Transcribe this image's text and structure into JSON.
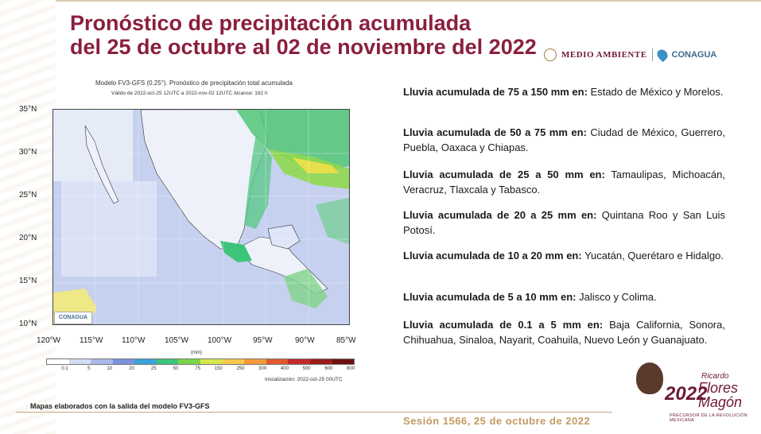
{
  "header": {
    "title_line1": "Pronóstico de precipitación acumulada",
    "title_line2": "del 25 de octubre al 02 de noviembre del 2022",
    "logo_medio_ambiente": "MEDIO AMBIENTE",
    "logo_conagua": "CONAGUA"
  },
  "map": {
    "title": "Modelo FV3-GFS (0.25°). Pronóstico de precipitación total acumulada",
    "subtitle": "Válido de 2022-oct-25 12UTC a 2022-nov-02 12UTC     Alcance: 192 h",
    "lat_labels": [
      "35°N",
      "30°N",
      "25°N",
      "20°N",
      "15°N",
      "10°N"
    ],
    "lon_labels": [
      "120°W",
      "115°W",
      "110°W",
      "105°W",
      "100°W",
      "95°W",
      "90°W",
      "85°W"
    ],
    "badge": "CONAGUA",
    "unit": "(mm)",
    "colorbar_ticks": [
      "0.1",
      "5",
      "10",
      "20",
      "25",
      "50",
      "75",
      "150",
      "250",
      "300",
      "400",
      "500",
      "600",
      "800"
    ],
    "colorbar_colors": [
      "#ffffff",
      "#d4dcf4",
      "#a9b9ea",
      "#7b93dd",
      "#3aa3d8",
      "#3cc47a",
      "#7bd44a",
      "#d8e84a",
      "#f6c94a",
      "#f49a3a",
      "#e2592f",
      "#c32a2a",
      "#9a1b1b",
      "#6e1010"
    ],
    "init_text": "Inicialización: 2022-oct-25 00UTC"
  },
  "rain_list": [
    {
      "label": "Lluvia acumulada de 75 a 150 mm en:",
      "states": " Estado de México y Morelos."
    },
    {
      "label": "Lluvia acumulada de 50 a 75 mm en:",
      "states": " Ciudad de México, Guerrero, Puebla, Oaxaca y Chiapas."
    },
    {
      "label": "Lluvia acumulada de 25 a 50 mm en:",
      "states": " Tamaulipas, Michoacán, Veracruz, Tlaxcala y Tabasco."
    },
    {
      "label": "Lluvia acumulada de 20 a 25 mm en:",
      "states": " Quintana Roo y San Luis Potosí."
    },
    {
      "label": "Lluvia acumulada de 10 a 20 mm en:",
      "states": " Yucatán, Querétaro e Hidalgo."
    },
    {
      "label": "Lluvia acumulada de 5 a 10 mm en:",
      "states": " Jalisco y Colima."
    },
    {
      "label": "Lluvia acumulada de 0.1 a 5 mm en:",
      "states": " Baja California, Sonora, Chihuahua, Sinaloa, Nayarit, Coahuila, Nuevo León y Guanajuato."
    }
  ],
  "footer": {
    "note": "Mapas elaborados con la salida del modelo FV3-GFS",
    "session": "Sesión 1566, 25 de octubre de 2022",
    "year": "2022",
    "hero_first": "Ricardo",
    "hero_name1": "Flores",
    "hero_name2": "Magón",
    "hero_sub": "PRECURSOR DE LA REVOLUCIÓN MEXICANA"
  }
}
